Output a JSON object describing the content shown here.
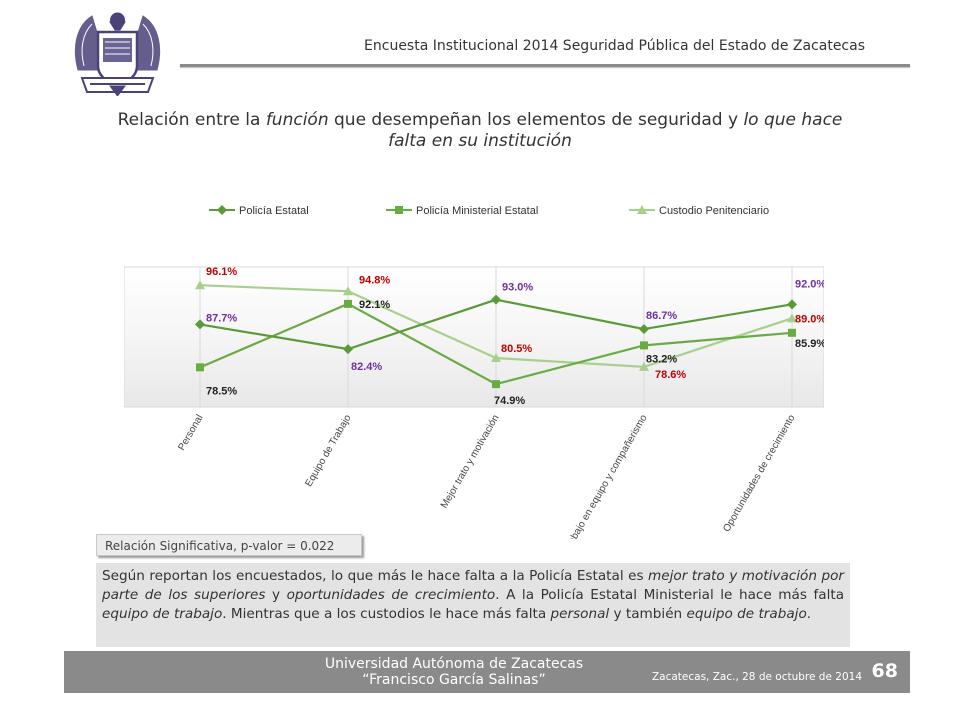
{
  "header": {
    "title": "Encuesta Institucional 2014 Seguridad Pública del Estado de Zacatecas"
  },
  "slide_title": {
    "t1": "Relación entre la ",
    "t2": "función",
    "t3": " que desempeñan los elementos de seguridad y ",
    "t4": "lo que hace",
    "t5": "falta en su institución"
  },
  "chart_data": {
    "type": "line",
    "categories": [
      "Personal",
      "Equipo de Trabajo",
      "Mejor trato y motivación",
      "Trabajo en equipo y compañerismo",
      "Oportunidades  de crecimiento"
    ],
    "series": [
      {
        "name": "Policía Estatal",
        "values": [
          87.7,
          82.4,
          93.0,
          86.7,
          92.0
        ],
        "labels": [
          "87.7%",
          "82.4%",
          "93.0%",
          "86.7%",
          "92.0%"
        ],
        "color": "#5a9a3a",
        "label_color": "#7030a0",
        "marker": "diamond"
      },
      {
        "name": "Policía Ministerial Estatal",
        "values": [
          78.5,
          92.1,
          74.9,
          83.2,
          85.9
        ],
        "labels": [
          "78.5%",
          "92.1%",
          "74.9%",
          "83.2%",
          "85.9%"
        ],
        "color": "#6aac44",
        "label_color": "#222222",
        "marker": "square"
      },
      {
        "name": "Custodio Penitenciario",
        "values": [
          96.1,
          94.8,
          80.5,
          78.6,
          89.0
        ],
        "labels": [
          "96.1%",
          "94.8%",
          "80.5%",
          "78.6%",
          "89.0%"
        ],
        "color": "#a8d08d",
        "label_color": "#c00000",
        "marker": "triangle"
      }
    ],
    "ylim": [
      70,
      100
    ],
    "grid": "vertical",
    "legend": "top"
  },
  "significance": "Relación Significativa, p-valor = 0.022",
  "summary": {
    "s1": "Según reportan los encuestados, lo que más le hace falta a la Policía Estatal es ",
    "s2": "mejor trato y motivación por parte de los superiores",
    "s3": " y ",
    "s4": "oportunidades de crecimiento",
    "s5": ". A la Policía Estatal Ministerial le hace más falta ",
    "s6": "equipo de trabajo",
    "s7": ". Mientras que a los custodios le hace más falta ",
    "s8": "personal",
    "s9": " y también ",
    "s10": "equipo de trabajo",
    "s11": "."
  },
  "footer": {
    "university": "Universidad Autónoma de Zacatecas",
    "university_name": "“Francisco García Salinas”",
    "date": "Zacatecas, Zac., 28 de octubre de 2014",
    "page": "68"
  },
  "logo": {
    "icon": "university-eagle-seal-icon",
    "color": "#4b4378"
  }
}
